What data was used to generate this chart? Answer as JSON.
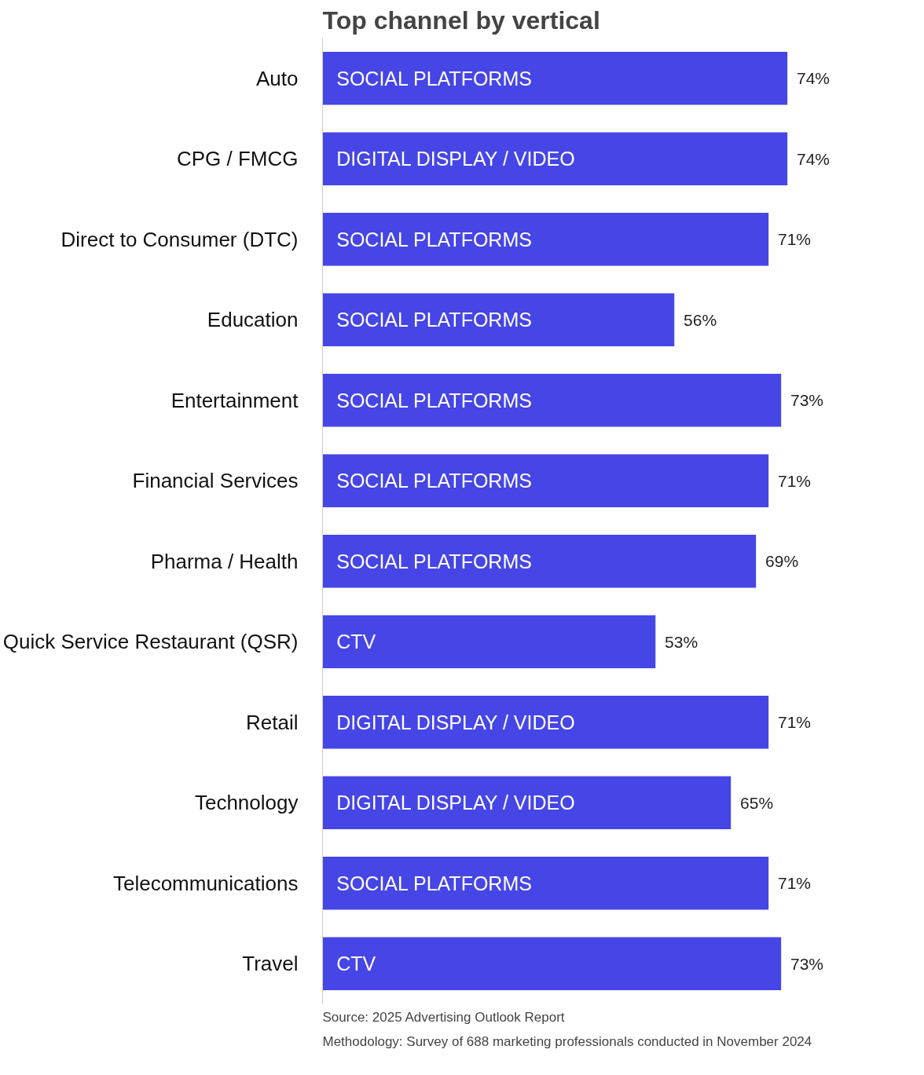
{
  "chart_data": {
    "type": "bar",
    "orientation": "horizontal",
    "title": "Top channel by vertical",
    "categories": [
      "Auto",
      "CPG / FMCG",
      "Direct to Consumer (DTC)",
      "Education",
      "Entertainment",
      "Financial Services",
      "Pharma / Health",
      "Quick Service Restaurant (QSR)",
      "Retail",
      "Technology",
      "Telecommunications",
      "Travel"
    ],
    "series": [
      {
        "name": "SOCIAL PLATFORMS",
        "color": "#4646e6",
        "values": [
          74,
          null,
          71,
          56,
          73,
          71,
          69,
          null,
          null,
          null,
          71,
          null
        ],
        "value_labels": [
          "74%",
          null,
          "71%",
          "56%",
          "73%",
          "71%",
          "69%",
          null,
          null,
          null,
          "71%",
          null
        ]
      },
      {
        "name": "DIGITAL DISPLAY / VIDEO",
        "color": "#4646e6",
        "values": [
          null,
          74,
          null,
          null,
          null,
          null,
          null,
          null,
          71,
          65,
          null,
          null
        ],
        "value_labels": [
          null,
          "74%",
          null,
          null,
          null,
          null,
          null,
          null,
          "71%",
          "65%",
          null,
          null
        ]
      },
      {
        "name": "CTV",
        "color": "#4646e6",
        "values": [
          null,
          null,
          null,
          null,
          null,
          null,
          null,
          53,
          null,
          null,
          null,
          73
        ],
        "value_labels": [
          null,
          null,
          null,
          null,
          null,
          null,
          null,
          "53%",
          null,
          null,
          null,
          "73%"
        ]
      }
    ],
    "annotations": [
      "Source: 2025 Advertising Outlook Report",
      "Methodology: Survey of 688 marketing professionals conducted in November 2024"
    ]
  }
}
